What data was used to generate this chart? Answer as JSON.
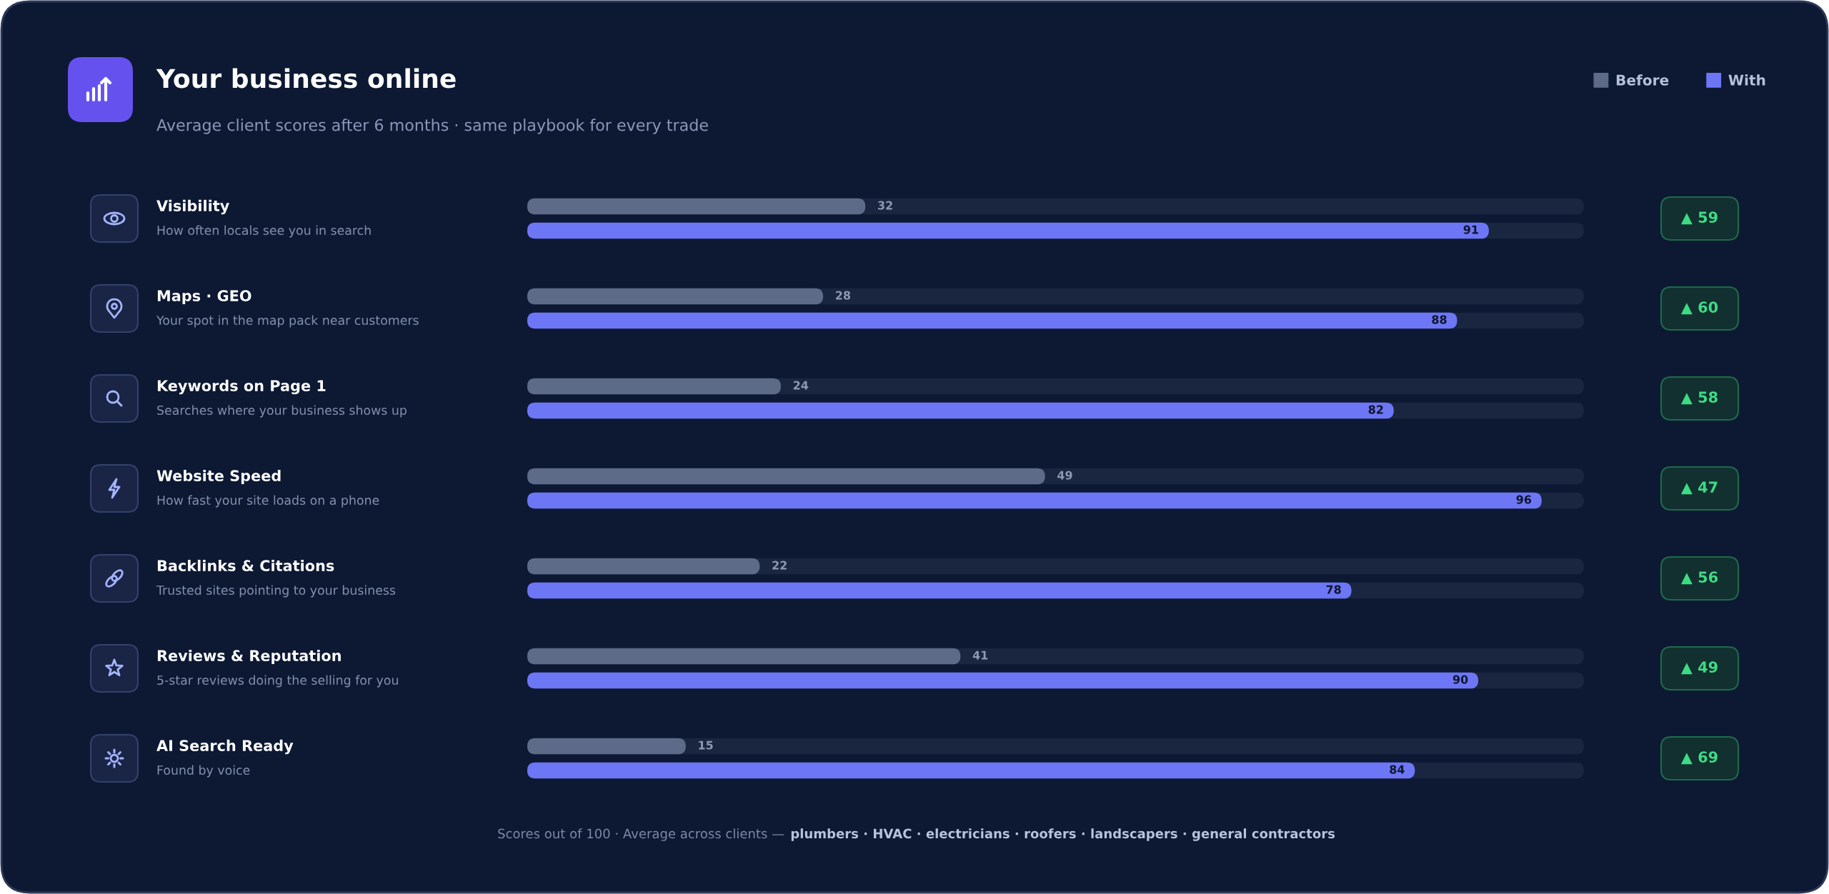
{
  "chart_data": {
    "type": "bar",
    "orientation": "horizontal",
    "title": "Your business online",
    "subtitle": "Average client scores after 6 months · same playbook for every trade",
    "categories": [
      "Visibility\nHow often locals see you in search",
      "Maps · GEO\nYour spot in the map pack near customers",
      "Keywords on Page 1\nSearches where your business shows up",
      "Website Speed\nHow fast your site loads on a phone",
      "Backlinks & Citations\nTrusted sites pointing to your business",
      "Reviews & Reputation\n5-star reviews doing the selling for you",
      "AI Search Ready\nFound by voice"
    ],
    "series": [
      {
        "name": "Before",
        "color": "#5d6b88",
        "values": [
          32,
          28,
          24,
          49,
          22,
          41,
          15
        ]
      },
      {
        "name": "With",
        "color": "#6d76f4",
        "values": [
          91,
          88,
          82,
          96,
          78,
          90,
          84
        ]
      }
    ],
    "xlim": [
      0,
      100
    ],
    "data_labels": true,
    "legend": "top right",
    "tick_labels": "y",
    "annotations": [
      "▲ 59",
      "▲ 60",
      "▲ 58",
      "▲ 47",
      "▲ 56",
      "▲ 49",
      "▲ 69",
      "Scores out of 100 · Average across clients —",
      "plumbers · HVAC · electricians · roofers · landscapers · general contractors"
    ]
  }
}
